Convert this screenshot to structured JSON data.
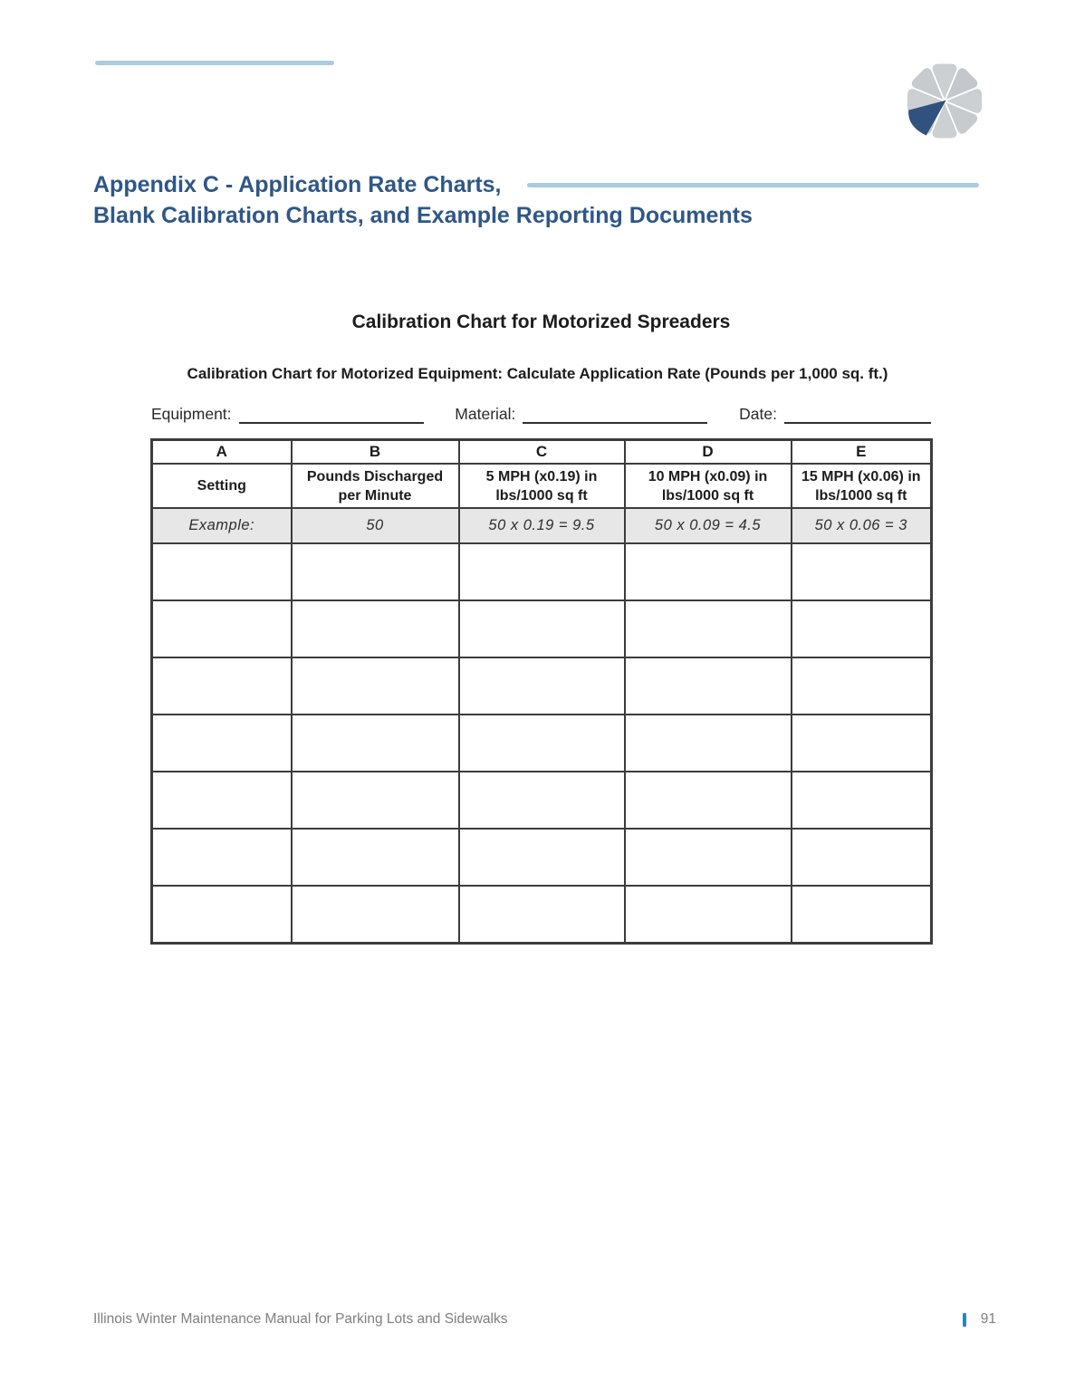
{
  "header": {
    "heading_line1": "Appendix C - Application Rate Charts,",
    "heading_line2": "Blank Calibration Charts, and Example Reporting Documents"
  },
  "section": {
    "title": "Calibration Chart for Motorized Spreaders",
    "subtitle": "Calibration Chart for Motorized Equipment: Calculate Application Rate (Pounds per 1,000 sq. ft.)"
  },
  "form": {
    "equipment_label": "Equipment:",
    "equipment_value": "",
    "material_label": "Material:",
    "material_value": "",
    "date_label": "Date:",
    "date_value": ""
  },
  "table": {
    "column_letters": [
      "A",
      "B",
      "C",
      "D",
      "E"
    ],
    "column_headers": [
      "Setting",
      "Pounds Discharged per Minute",
      "5 MPH (x0.19) in lbs/1000 sq ft",
      "10 MPH (x0.09) in lbs/1000 sq ft",
      "15 MPH (x0.06) in lbs/1000 sq ft"
    ],
    "example_row": [
      "Example:",
      "50",
      "50 x 0.19 = 9.5",
      "50 x 0.09 = 4.5",
      "50 x 0.06 = 3"
    ],
    "blank_row_count": 7,
    "blank_columns": 5
  },
  "footer": {
    "manual_title": "Illinois Winter Maintenance Manual for Parking Lots and Sidewalks",
    "page_number": "91"
  },
  "logo": {
    "name": "pinwheel-logo",
    "gray": "#CDD0D3",
    "gray_alt": "#C4C7CB",
    "blue": "#31517F"
  },
  "colors": {
    "heading_blue": "#2F5787",
    "rule_light_blue": "#A9CDDE",
    "table_border": "#3C3C3C",
    "example_row_bg": "#E7E7E7",
    "footer_text_gray": "#7F7F7F",
    "footer_bar_blue": "#2E86B5"
  }
}
